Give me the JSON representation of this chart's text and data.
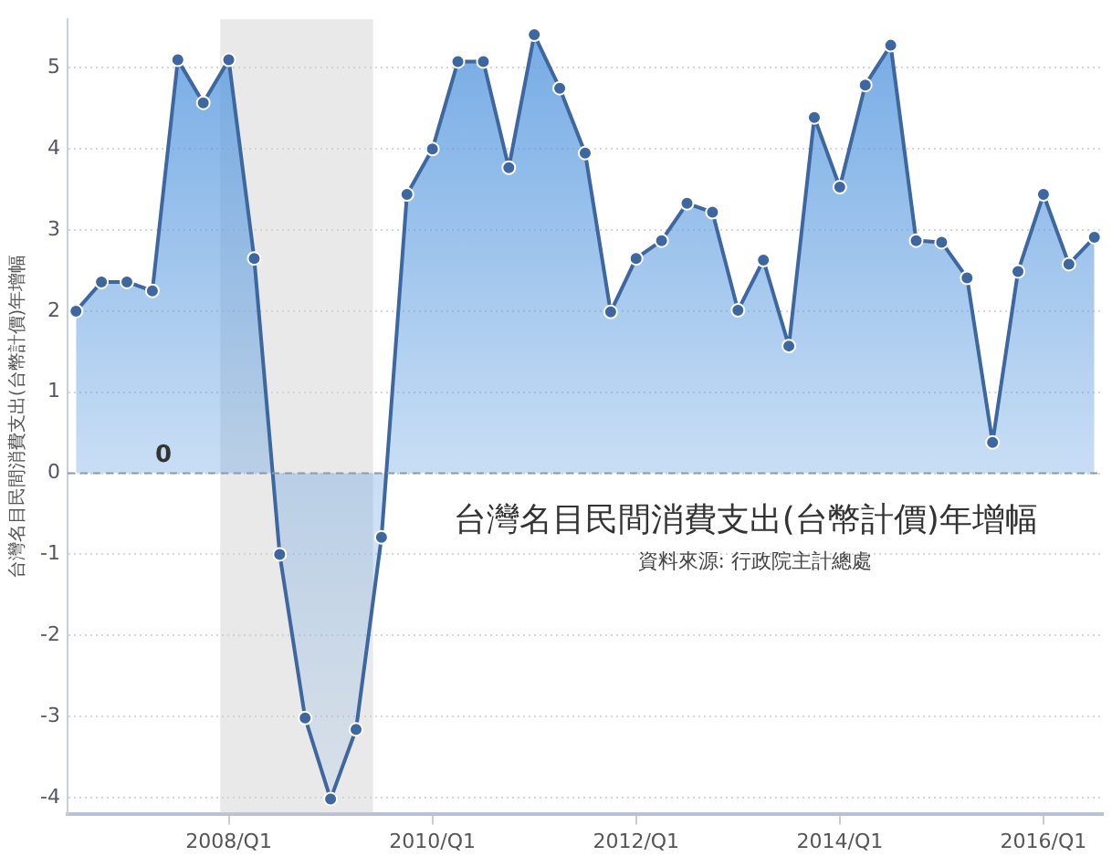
{
  "chart_data": {
    "type": "area",
    "title": "台灣名目民間消費支出(台幣計價)年增幅",
    "ylabel": "台灣名目民間消費支出(台幣計價)年增幅",
    "annotations": [
      "資料來源: 行政院主計總處"
    ],
    "x": [
      "2006-07",
      "2006-10",
      "2007-01",
      "2007-04",
      "2007-07",
      "2007-10",
      "2008-01",
      "2008-04",
      "2008-07",
      "2008-10",
      "2009-01",
      "2009-04",
      "2009-07",
      "2009-10",
      "2010-01",
      "2010-04",
      "2010-07",
      "2010-10",
      "2011-01",
      "2011-04",
      "2011-07",
      "2011-10",
      "2012-01",
      "2012-04",
      "2012-07",
      "2012-10",
      "2013-01",
      "2013-04",
      "2013-07",
      "2013-10",
      "2014-01",
      "2014-04",
      "2014-07",
      "2014-10",
      "2015-01",
      "2015-04",
      "2015-07",
      "2015-10",
      "2016-01",
      "2016-04",
      "2016-07"
    ],
    "series": [
      {
        "color": "#3d679e",
        "values": [
          2.0,
          2.36,
          2.36,
          2.25,
          5.1,
          4.57,
          5.1,
          2.65,
          -1.0,
          -3.02,
          -4.02,
          -3.16,
          -0.79,
          3.44,
          4.0,
          5.08,
          5.08,
          3.77,
          5.41,
          4.75,
          3.95,
          1.99,
          2.65,
          2.87,
          3.33,
          3.22,
          2.01,
          2.63,
          1.57,
          4.39,
          3.53,
          4.79,
          5.28,
          2.87,
          2.85,
          2.41,
          0.38,
          2.49,
          3.44,
          2.58,
          2.91
        ]
      }
    ],
    "xlim": [
      "2006-06",
      "2016-08"
    ],
    "xticks": [
      {
        "value": "2008-01",
        "label": "2008/Q1"
      },
      {
        "value": "2010-01",
        "label": "2010/Q1"
      },
      {
        "value": "2012-01",
        "label": "2012/Q1"
      },
      {
        "value": "2014-01",
        "label": "2014/Q1"
      },
      {
        "value": "2016-01",
        "label": "2016/Q1"
      }
    ],
    "ylim": [
      -4.2,
      5.6
    ],
    "yticks": [
      -4,
      -3,
      -2,
      -1,
      0,
      1,
      2,
      3,
      4,
      5
    ],
    "ref_lines": [
      {
        "axis": "y",
        "value": 0,
        "label": "0",
        "color": "#8a9bb0",
        "line_style": "dashed"
      }
    ],
    "bands": [
      {
        "axis": "x",
        "from": "2007-12",
        "to": "2009-06",
        "color": "#cfcfcf"
      }
    ],
    "grid": "y",
    "legend": false,
    "marker": "circle",
    "line_style": "solid"
  }
}
